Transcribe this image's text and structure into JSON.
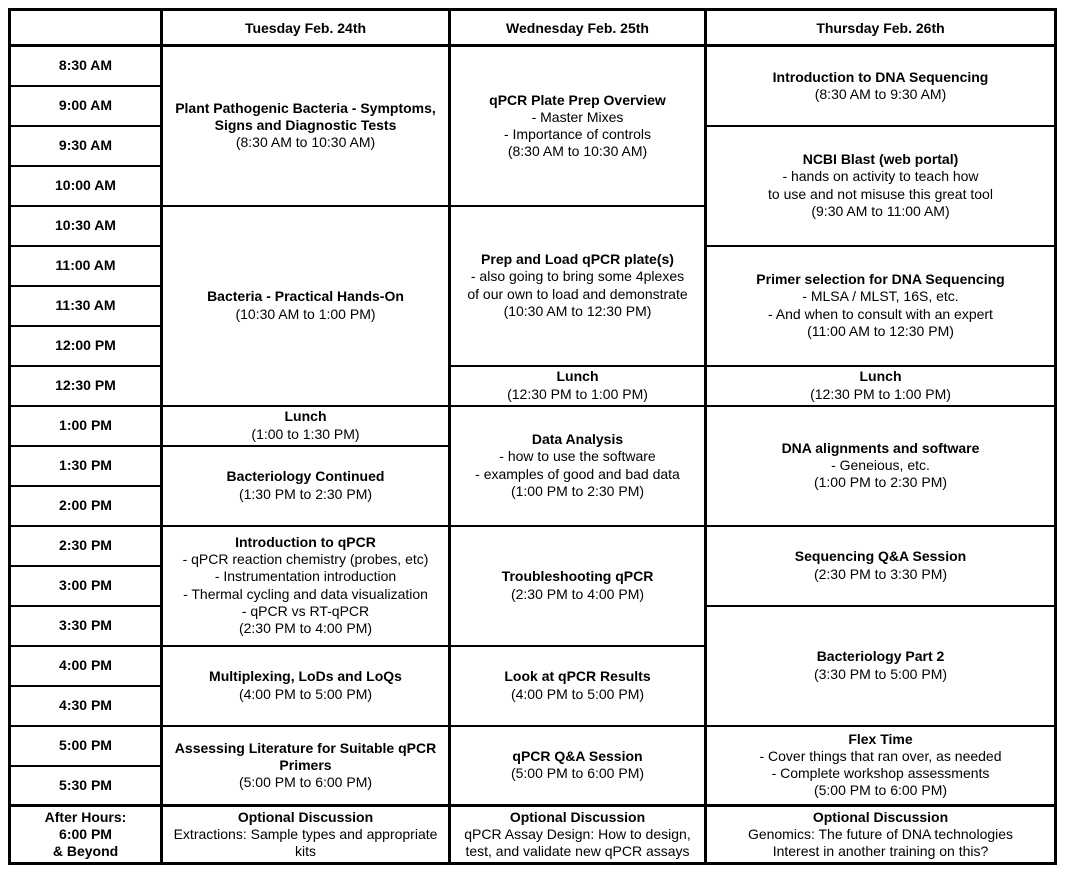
{
  "table": {
    "corner_label": "",
    "time_slots": [
      "8:30 AM",
      "9:00 AM",
      "9:30 AM",
      "10:00 AM",
      "10:30 AM",
      "11:00 AM",
      "11:30 AM",
      "12:00 PM",
      "12:30 PM",
      "1:00 PM",
      "1:30 PM",
      "2:00 PM",
      "2:30 PM",
      "3:00 PM",
      "3:30 PM",
      "4:00 PM",
      "4:30 PM",
      "5:00 PM",
      "5:30 PM"
    ],
    "after_hours_label": "After Hours:\n6:00 PM\n& Beyond"
  },
  "days": [
    {
      "name": "Tuesday Feb. 24th",
      "events": [
        {
          "title": "Plant Pathogenic Bacteria - Symptoms,\nSigns and Diagnostic Tests",
          "body": "(8:30 AM to 10:30 AM)"
        },
        {
          "title": "Bacteria - Practical Hands-On",
          "body": "(10:30 AM to 1:00 PM)"
        },
        {
          "title": "Lunch",
          "body": "(1:00 to 1:30 PM)"
        },
        {
          "title": "Bacteriology Continued",
          "body": "(1:30 PM to 2:30 PM)"
        },
        {
          "title": "Introduction to qPCR",
          "body": "- qPCR reaction chemistry (probes, etc)\n- Instrumentation introduction\n- Thermal cycling and data visualization\n- qPCR vs RT-qPCR\n(2:30 PM to 4:00 PM)"
        },
        {
          "title": "Multiplexing, LoDs and LoQs",
          "body": "(4:00 PM to 5:00 PM)"
        },
        {
          "title": "Assessing Literature for Suitable qPCR\nPrimers",
          "body": "(5:00 PM to 6:00 PM)"
        },
        {
          "title": "Optional Discussion",
          "body": "Extractions: Sample types and appropriate kits"
        }
      ]
    },
    {
      "name": "Wednesday Feb. 25th",
      "events": [
        {
          "title": "qPCR Plate Prep Overview",
          "body": "- Master Mixes\n- Importance of controls\n(8:30 AM to 10:30 AM)"
        },
        {
          "title": "Prep and Load qPCR plate(s)",
          "body": "- also going to bring some 4plexes\nof our own to load and demonstrate\n(10:30 AM to 12:30 PM)"
        },
        {
          "title": "Lunch",
          "body": "(12:30 PM to 1:00 PM)"
        },
        {
          "title": "Data Analysis",
          "body": "- how to use the software\n- examples of good and bad data\n(1:00 PM to 2:30 PM)"
        },
        {
          "title": "Troubleshooting qPCR",
          "body": "(2:30 PM to 4:00 PM)"
        },
        {
          "title": "Look at qPCR Results",
          "body": "(4:00 PM to 5:00 PM)"
        },
        {
          "title": "qPCR Q&A Session",
          "body": "(5:00 PM to 6:00 PM)"
        },
        {
          "title": "Optional Discussion",
          "body": "qPCR Assay Design: How to design,\ntest, and validate new qPCR assays"
        }
      ]
    },
    {
      "name": "Thursday Feb. 26th",
      "events": [
        {
          "title": "Introduction to DNA Sequencing",
          "body": "(8:30 AM to 9:30 AM)"
        },
        {
          "title": "NCBI Blast (web portal)",
          "body": "- hands on activity to teach how\nto use and not misuse this great tool\n(9:30 AM to 11:00 AM)"
        },
        {
          "title": "Primer selection for DNA Sequencing",
          "body": "- MLSA / MLST, 16S, etc.\n- And when to consult with an expert\n(11:00 AM to 12:30 PM)"
        },
        {
          "title": "Lunch",
          "body": "(12:30 PM to 1:00 PM)"
        },
        {
          "title": "DNA alignments and software",
          "body": "- Geneious, etc.\n(1:00 PM to 2:30 PM)"
        },
        {
          "title": "Sequencing Q&A Session",
          "body": "(2:30 PM to 3:30 PM)"
        },
        {
          "title": "Bacteriology Part 2",
          "body": "(3:30 PM to 5:00 PM)"
        },
        {
          "title": "Flex Time",
          "body": "- Cover things that ran over, as needed\n- Complete workshop assessments\n(5:00 PM to 6:00 PM)"
        },
        {
          "title": "Optional Discussion",
          "body": "Genomics: The future of DNA technologies\nInterest in another training on this?"
        }
      ]
    }
  ]
}
